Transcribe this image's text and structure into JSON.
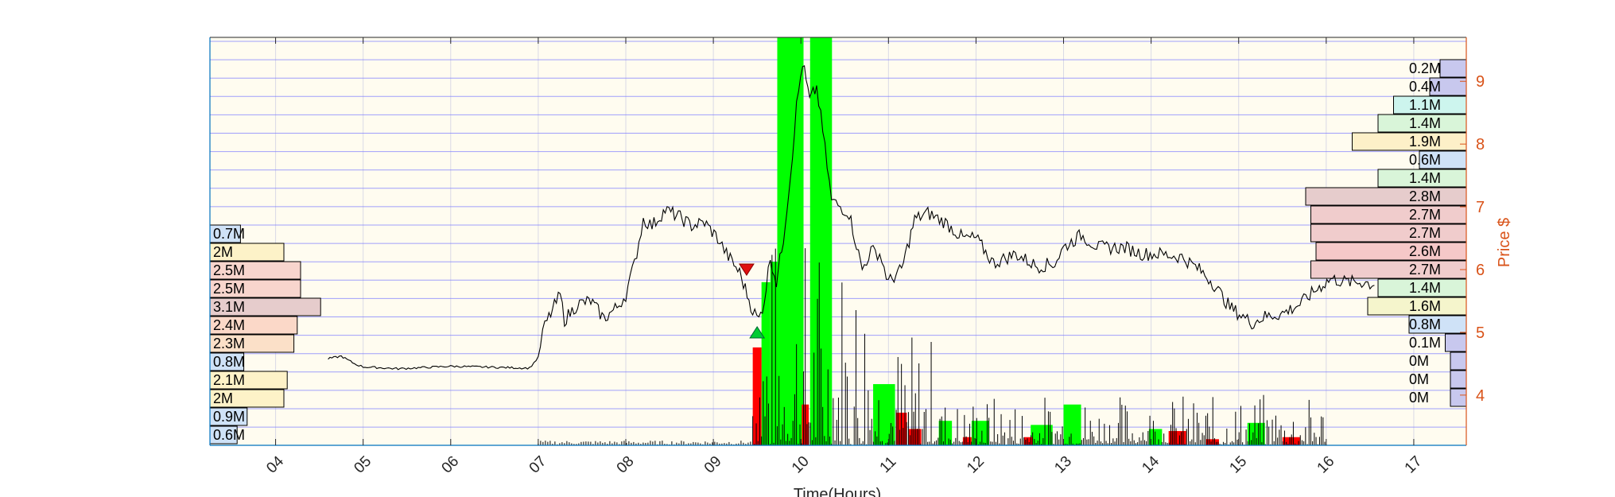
{
  "chart_data": {
    "type": "candlestick",
    "xlabel": "Time(Hours)",
    "ylabel_right": "Price $",
    "x_ticks": [
      "04",
      "05",
      "06",
      "07",
      "08",
      "09",
      "10",
      "11",
      "12",
      "13",
      "14",
      "15",
      "16",
      "17"
    ],
    "x_range": [
      3.25,
      17.6
    ],
    "y_right_ticks": [
      "4",
      "5",
      "6",
      "7",
      "8",
      "9"
    ],
    "y_right_range": [
      3.2,
      9.7
    ],
    "grid": true,
    "colors": {
      "background": "#fffcf0",
      "axis_left": "#0072bd",
      "axis_right": "#d95319",
      "price_line": "#000000",
      "volume_up": "#00ff00",
      "volume_down": "#ff0000",
      "signal_sell": "#e01010",
      "signal_buy": "#00cc33",
      "price_grid": "#8080ff"
    },
    "price_series": [
      [
        4.6,
        4.58
      ],
      [
        4.75,
        4.62
      ],
      [
        4.9,
        4.5
      ],
      [
        5.0,
        4.45
      ],
      [
        5.4,
        4.42
      ],
      [
        6.0,
        4.46
      ],
      [
        6.9,
        4.43
      ],
      [
        7.0,
        4.6
      ],
      [
        7.05,
        5.0
      ],
      [
        7.1,
        5.18
      ],
      [
        7.25,
        5.6
      ],
      [
        7.3,
        5.2
      ],
      [
        7.45,
        5.45
      ],
      [
        7.6,
        5.5
      ],
      [
        7.75,
        5.22
      ],
      [
        7.9,
        5.4
      ],
      [
        8.0,
        5.6
      ],
      [
        8.1,
        6.1
      ],
      [
        8.2,
        6.8
      ],
      [
        8.3,
        6.7
      ],
      [
        8.45,
        6.95
      ],
      [
        8.6,
        6.85
      ],
      [
        8.75,
        6.7
      ],
      [
        8.9,
        6.75
      ],
      [
        9.05,
        6.5
      ],
      [
        9.15,
        6.25
      ],
      [
        9.3,
        5.95
      ],
      [
        9.45,
        5.35
      ],
      [
        9.52,
        5.2
      ],
      [
        9.58,
        5.5
      ],
      [
        9.65,
        6.2
      ],
      [
        9.72,
        5.8
      ],
      [
        9.8,
        6.5
      ],
      [
        9.88,
        7.5
      ],
      [
        9.95,
        8.6
      ],
      [
        10.02,
        9.3
      ],
      [
        10.1,
        8.7
      ],
      [
        10.18,
        8.9
      ],
      [
        10.25,
        8.2
      ],
      [
        10.35,
        7.1
      ],
      [
        10.45,
        7.0
      ],
      [
        10.55,
        6.9
      ],
      [
        10.7,
        6.0
      ],
      [
        10.8,
        6.3
      ],
      [
        10.9,
        6.25
      ],
      [
        11.0,
        5.8
      ],
      [
        11.15,
        6.0
      ],
      [
        11.3,
        6.8
      ],
      [
        11.45,
        6.9
      ],
      [
        11.65,
        6.75
      ],
      [
        11.85,
        6.5
      ],
      [
        12.0,
        6.5
      ],
      [
        12.2,
        6.1
      ],
      [
        12.45,
        6.25
      ],
      [
        12.7,
        6.05
      ],
      [
        12.9,
        6.1
      ],
      [
        13.0,
        6.35
      ],
      [
        13.2,
        6.55
      ],
      [
        13.4,
        6.35
      ],
      [
        13.7,
        6.35
      ],
      [
        13.9,
        6.25
      ],
      [
        14.1,
        6.25
      ],
      [
        14.35,
        6.2
      ],
      [
        14.55,
        6.0
      ],
      [
        14.7,
        5.8
      ],
      [
        14.9,
        5.4
      ],
      [
        15.05,
        5.25
      ],
      [
        15.15,
        5.15
      ],
      [
        15.3,
        5.25
      ],
      [
        15.5,
        5.3
      ],
      [
        15.7,
        5.45
      ],
      [
        15.9,
        5.7
      ],
      [
        16.05,
        5.85
      ],
      [
        16.25,
        5.8
      ],
      [
        16.45,
        5.8
      ],
      [
        16.55,
        5.75
      ]
    ],
    "volume_up_bars": [
      [
        9.88,
        0.3,
        1.0
      ],
      [
        10.23,
        0.25,
        1.0
      ],
      [
        9.6,
        0.1,
        0.4
      ],
      [
        9.7,
        0.1,
        0.45
      ],
      [
        10.95,
        0.25,
        0.15
      ],
      [
        11.65,
        0.15,
        0.06
      ],
      [
        12.05,
        0.2,
        0.06
      ],
      [
        12.75,
        0.25,
        0.05
      ],
      [
        13.1,
        0.2,
        0.1
      ],
      [
        14.05,
        0.15,
        0.04
      ],
      [
        15.2,
        0.2,
        0.055
      ]
    ],
    "volume_down_bars": [
      [
        9.5,
        0.1,
        0.24
      ],
      [
        10.05,
        0.08,
        0.1
      ],
      [
        11.15,
        0.12,
        0.08
      ],
      [
        11.3,
        0.15,
        0.04
      ],
      [
        11.9,
        0.1,
        0.02
      ],
      [
        12.6,
        0.1,
        0.02
      ],
      [
        14.3,
        0.2,
        0.035
      ],
      [
        14.7,
        0.15,
        0.015
      ],
      [
        15.6,
        0.2,
        0.02
      ]
    ],
    "signals": [
      {
        "type": "sell",
        "x": 9.38,
        "price": 6.0
      },
      {
        "type": "buy",
        "x": 9.5,
        "price": 5.0
      }
    ],
    "volume_profile_left": {
      "labels": [
        "0.7M",
        "2M",
        "2.5M",
        "2.5M",
        "3.1M",
        "2.4M",
        "2.3M",
        "0.8M",
        "2.1M",
        "2M",
        "0.9M",
        "0.6M"
      ],
      "values": [
        0.7,
        2.0,
        2.5,
        2.5,
        3.1,
        2.4,
        2.3,
        0.8,
        2.1,
        2.0,
        0.9,
        0.6
      ]
    },
    "volume_profile_right": {
      "labels": [
        "0.2M",
        "0.4M",
        "1.1M",
        "1.4M",
        "1.9M",
        "0.6M",
        "1.4M",
        "2.8M",
        "2.7M",
        "2.7M",
        "2.6M",
        "2.7M",
        "1.4M",
        "1.6M",
        "0.8M",
        "0.1M",
        "0M",
        "0M",
        "0M"
      ],
      "values": [
        0.2,
        0.4,
        1.1,
        1.4,
        1.9,
        0.6,
        1.4,
        2.8,
        2.7,
        2.7,
        2.6,
        2.7,
        1.4,
        1.6,
        0.8,
        0.1,
        0,
        0,
        0
      ]
    }
  }
}
